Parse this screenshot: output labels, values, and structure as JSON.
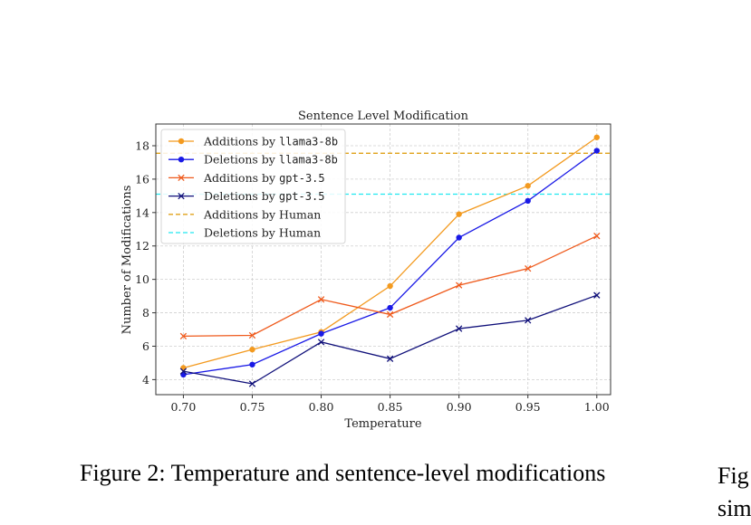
{
  "figure": {
    "caption": "Figure 2: Temperature and sentence-level modifications",
    "neighbor_caption_lines": [
      "Fig",
      "sim"
    ]
  },
  "chart_data": {
    "type": "line",
    "title": "Sentence Level Modification",
    "xlabel": "Temperature",
    "ylabel": "Number of Modifications",
    "x": [
      0.7,
      0.75,
      0.8,
      0.85,
      0.9,
      0.95,
      1.0
    ],
    "x_tick_labels": [
      "0.70",
      "0.75",
      "0.80",
      "0.85",
      "0.90",
      "0.95",
      "1.00"
    ],
    "y_ticks": [
      4,
      6,
      8,
      10,
      12,
      14,
      16,
      18
    ],
    "xlim": [
      0.68,
      1.01
    ],
    "ylim": [
      3.1,
      19.3
    ],
    "grid": true,
    "legend_position": "top-left",
    "series": [
      {
        "name_prefix": "Additions by ",
        "name_model": "llama3-8b",
        "color": "#f39a1f",
        "marker": "circle",
        "values": [
          4.7,
          5.8,
          6.85,
          9.6,
          13.9,
          15.6,
          18.5
        ]
      },
      {
        "name_prefix": "Deletions by ",
        "name_model": "llama3-8b",
        "color": "#1919e6",
        "marker": "circle",
        "values": [
          4.3,
          4.9,
          6.75,
          8.3,
          12.5,
          14.7,
          17.7
        ]
      },
      {
        "name_prefix": "Additions by ",
        "name_model": "gpt-3.5",
        "color": "#ef5a1c",
        "marker": "x",
        "values": [
          6.6,
          6.65,
          8.8,
          7.9,
          9.65,
          10.65,
          12.6
        ]
      },
      {
        "name_prefix": "Deletions by ",
        "name_model": "gpt-3.5",
        "color": "#10107a",
        "marker": "x",
        "values": [
          4.5,
          3.75,
          6.25,
          5.25,
          7.05,
          7.55,
          9.05
        ]
      }
    ],
    "reference_lines": [
      {
        "name": "Additions by Human",
        "value": 17.55,
        "color": "#e0a21a",
        "style": "dashed"
      },
      {
        "name": "Deletions by Human",
        "value": 15.1,
        "color": "#20e8f0",
        "style": "dashed"
      }
    ]
  }
}
